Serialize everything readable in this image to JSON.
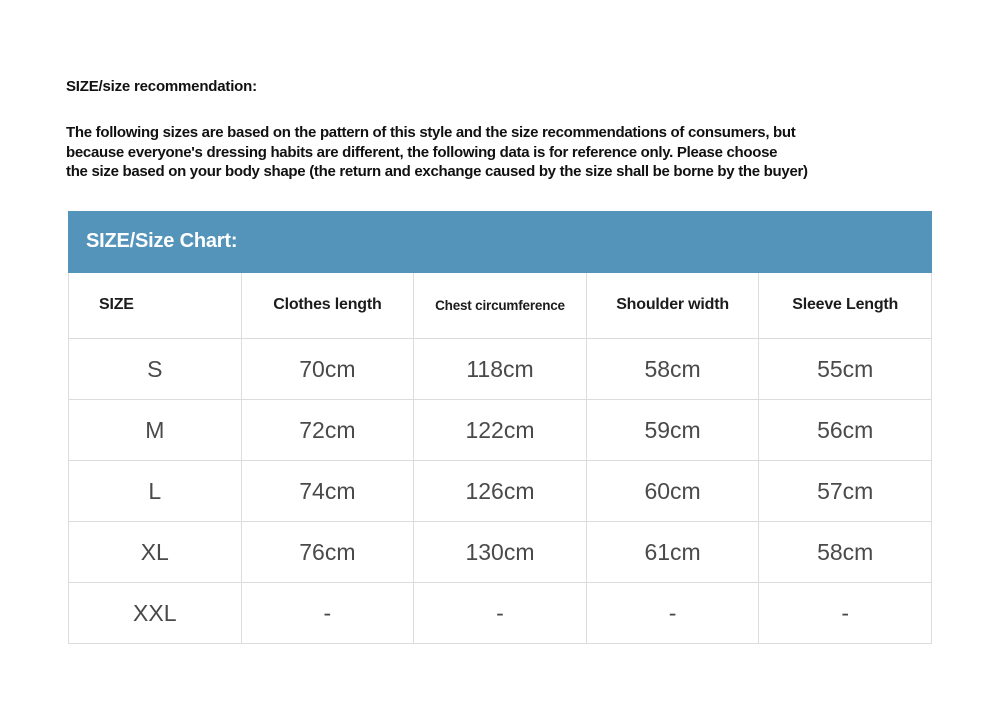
{
  "page": {
    "heading": "SIZE/size recommendation:",
    "disclaimer_lines": [
      "The following sizes are based on the pattern of this style and the size recommendations of consumers, but",
      "because everyone's dressing habits are different, the following data is for reference only. Please choose",
      "the size based on your body shape (the return and exchange caused by the size shall be borne by the buyer)"
    ]
  },
  "size_chart": {
    "title": "SIZE/Size Chart:",
    "title_bar_color": "#5494ba",
    "border_color": "#dcdcdc",
    "columns": [
      "SIZE",
      "Clothes length",
      "Chest circumference",
      "Shoulder width",
      "Sleeve Length"
    ],
    "rows": [
      [
        "S",
        "70cm",
        "118cm",
        "58cm",
        "55cm"
      ],
      [
        "M",
        "72cm",
        "122cm",
        "59cm",
        "56cm"
      ],
      [
        "L",
        "74cm",
        "126cm",
        "60cm",
        "57cm"
      ],
      [
        "XL",
        "76cm",
        "130cm",
        "61cm",
        "58cm"
      ],
      [
        "XXL",
        "-",
        "-",
        "-",
        "-"
      ]
    ]
  }
}
